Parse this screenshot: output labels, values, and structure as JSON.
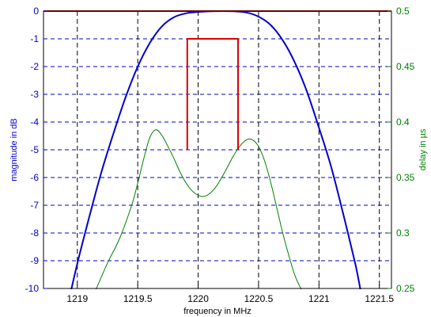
{
  "chart_data": {
    "type": "line",
    "title": "",
    "xlabel": "frequency in MHz",
    "ylabel_left": "magnitude in dB",
    "ylabel_right": "delay in µs",
    "xlim": [
      1218.72,
      1221.6
    ],
    "ylim_left": [
      -10,
      0
    ],
    "ylim_right": [
      0.25,
      0.5
    ],
    "grid": true,
    "x_ticks": [
      1219,
      1219.5,
      1220,
      1220.5,
      1221,
      1221.5
    ],
    "x_tick_labels": [
      "1219",
      "1219.5",
      "1220",
      "1220.5",
      "1221",
      "1221.5"
    ],
    "y_left_ticks": [
      0,
      -1,
      -2,
      -3,
      -4,
      -5,
      -6,
      -7,
      -8,
      -9,
      -10
    ],
    "y_left_tick_labels": [
      "0",
      "-1",
      "-2",
      "-3",
      "-4",
      "-5",
      "-6",
      "-7",
      "-8",
      "-9",
      "-10"
    ],
    "y_right_ticks": [
      0.5,
      0.45,
      0.4,
      0.35,
      0.3,
      0.25
    ],
    "y_right_tick_labels": [
      "0.5",
      "0.45",
      "0.4",
      "0.35",
      "0.3",
      "0.25"
    ],
    "colors": {
      "magnitude": "#0000cc",
      "delay": "#008000",
      "mask": "#dd0000",
      "grid_v": "#000000",
      "grid_h": "#0000cc",
      "left_axis": "#0000cc",
      "right_axis": "#008000"
    },
    "series": [
      {
        "axis": "left",
        "x": [
          1218.9,
          1219.0,
          1219.1,
          1219.2,
          1219.3,
          1219.4,
          1219.5,
          1219.6,
          1219.7,
          1219.8,
          1219.9,
          1220.0,
          1220.1,
          1220.2,
          1220.3,
          1220.4,
          1220.5,
          1220.6,
          1220.7,
          1220.8,
          1220.9,
          1221.0,
          1221.1,
          1221.2,
          1221.3,
          1221.35
        ],
        "values": [
          -11.0,
          -9.1,
          -7.4,
          -5.8,
          -4.4,
          -3.1,
          -2.0,
          -1.15,
          -0.55,
          -0.22,
          -0.08,
          -0.03,
          -0.01,
          0.0,
          -0.01,
          -0.05,
          -0.2,
          -0.5,
          -1.05,
          -1.85,
          -2.9,
          -4.2,
          -5.6,
          -7.3,
          -9.1,
          -10.2
        ]
      },
      {
        "axis": "right",
        "x": [
          1219.15,
          1219.25,
          1219.35,
          1219.45,
          1219.5,
          1219.55,
          1219.6,
          1219.65,
          1219.7,
          1219.75,
          1219.8,
          1219.85,
          1219.9,
          1219.95,
          1220.0,
          1220.05,
          1220.1,
          1220.15,
          1220.2,
          1220.25,
          1220.3,
          1220.35,
          1220.4,
          1220.45,
          1220.5,
          1220.55,
          1220.6,
          1220.65,
          1220.7,
          1220.75,
          1220.8,
          1220.85,
          1220.9,
          1220.95
        ],
        "values": [
          0.248,
          0.273,
          0.295,
          0.325,
          0.345,
          0.367,
          0.386,
          0.393,
          0.388,
          0.378,
          0.367,
          0.355,
          0.345,
          0.338,
          0.334,
          0.333,
          0.336,
          0.342,
          0.351,
          0.361,
          0.371,
          0.379,
          0.384,
          0.384,
          0.378,
          0.365,
          0.346,
          0.323,
          0.3,
          0.28,
          0.262,
          0.25,
          0.24,
          0.23
        ]
      },
      {
        "axis": "left",
        "x": [
          1218.72,
          1221.6
        ],
        "values": [
          0,
          0
        ]
      },
      {
        "axis": "left",
        "x": [
          1219.91,
          1219.91,
          1220.33,
          1220.33
        ],
        "values": [
          -5,
          -1,
          -1,
          -5
        ]
      }
    ]
  }
}
